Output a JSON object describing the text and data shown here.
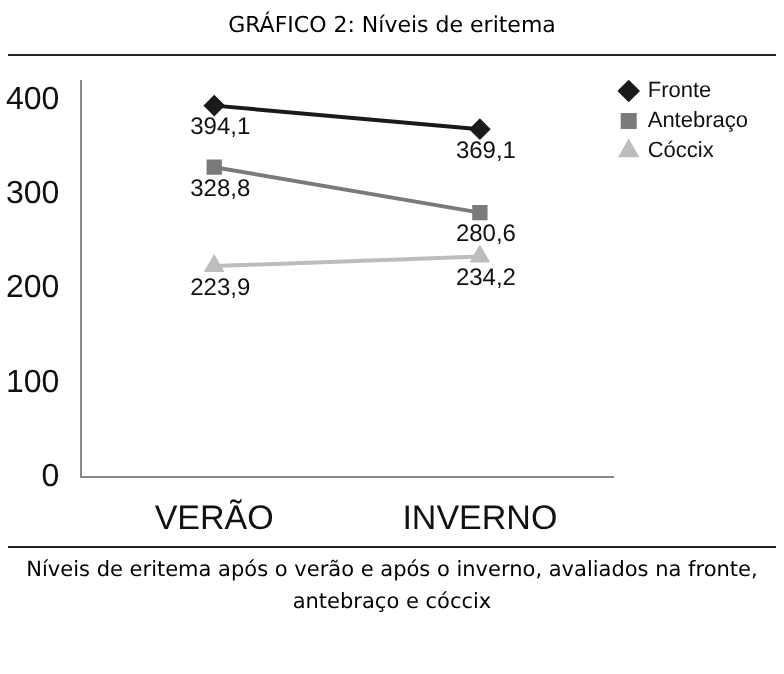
{
  "chart_data": {
    "type": "line",
    "title": "GRÁFICO 2: Níveis de eritema",
    "categories": [
      "VERÃO",
      "INVERNO"
    ],
    "series": [
      {
        "name": "Fronte",
        "color": "#1a1a1a",
        "marker": "diamond",
        "values": [
          394.1,
          369.1
        ],
        "value_labels": [
          "394,1",
          "369,1"
        ]
      },
      {
        "name": "Antebraço",
        "color": "#7a7a7a",
        "marker": "square",
        "values": [
          328.8,
          280.6
        ],
        "value_labels": [
          "328,8",
          "280,6"
        ]
      },
      {
        "name": "Cóccix",
        "color": "#bdbdbd",
        "marker": "triangle",
        "values": [
          223.9,
          234.2
        ],
        "value_labels": [
          "223,9",
          "234,2"
        ]
      }
    ],
    "ylim": [
      0,
      420
    ],
    "yticks": [
      0,
      100,
      200,
      300,
      400
    ],
    "grid": false,
    "legend": "top right",
    "annotations": [
      "Níveis de eritema após o verão e após o inverno, avaliados na fronte, antebraço e cóccix"
    ]
  }
}
